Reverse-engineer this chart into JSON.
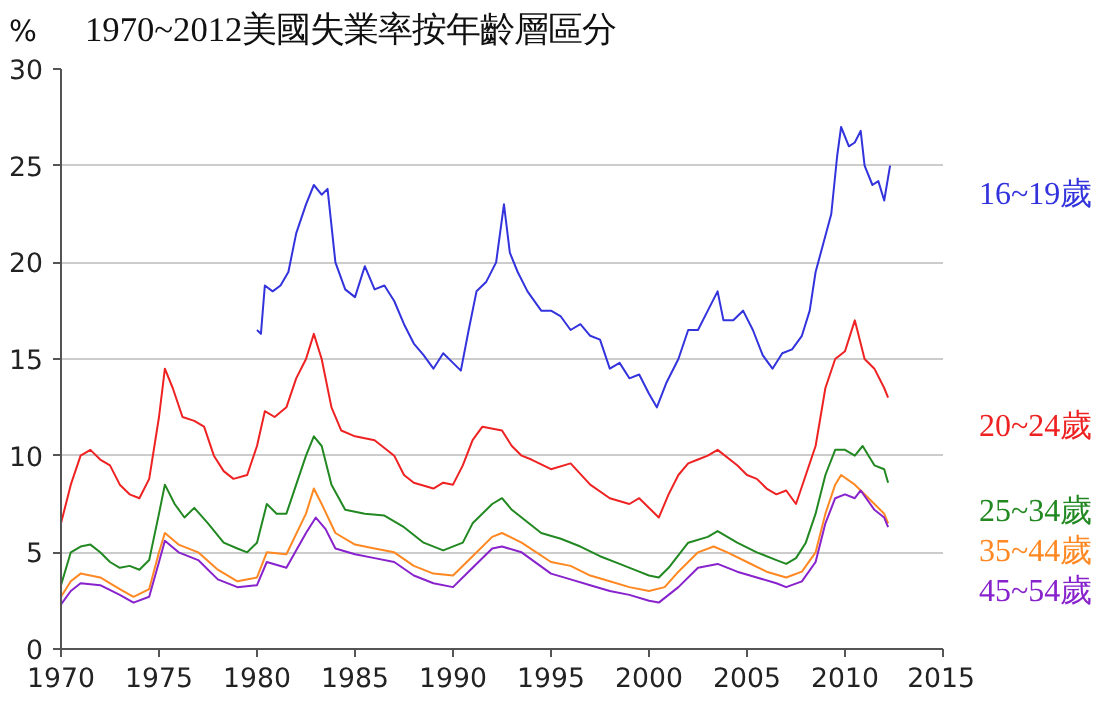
{
  "chart_data": {
    "type": "line",
    "title": "1970~2012美國失業率按年齡層區分",
    "ylabel": "%",
    "xlim": [
      1970,
      2015
    ],
    "xticks": [
      1970,
      1975,
      1980,
      1985,
      1990,
      1995,
      2000,
      2005,
      2010,
      2015
    ],
    "ylim": [
      0,
      30
    ],
    "yticks": [
      0,
      5,
      10,
      15,
      20,
      25,
      30
    ],
    "grid": "y",
    "marker": "none",
    "line_style": "solid",
    "series": [
      {
        "name": "16~19歲",
        "color": "#3333dd",
        "x": [
          1980.0,
          1980.2,
          1980.4,
          1980.8,
          1981.2,
          1981.6,
          1982.0,
          1982.5,
          1982.9,
          1983.3,
          1983.6,
          1984.0,
          1984.5,
          1985.0,
          1985.5,
          1986.0,
          1986.5,
          1987.0,
          1987.5,
          1988.0,
          1988.5,
          1989.0,
          1989.5,
          1990.0,
          1990.4,
          1990.8,
          1991.2,
          1991.7,
          1992.2,
          1992.6,
          1992.9,
          1993.3,
          1993.8,
          1994.5,
          1995.0,
          1995.5,
          1996.0,
          1996.5,
          1997.0,
          1997.5,
          1998.0,
          1998.5,
          1999.0,
          1999.5,
          2000.0,
          2000.4,
          2000.9,
          2001.5,
          2002.0,
          2002.5,
          2003.0,
          2003.5,
          2003.8,
          2004.3,
          2004.8,
          2005.3,
          2005.8,
          2006.3,
          2006.8,
          2007.3,
          2007.8,
          2008.2,
          2008.5,
          2008.9,
          2009.3,
          2009.6,
          2009.8,
          2010.2,
          2010.5,
          2010.8,
          2011.0,
          2011.4,
          2011.7,
          2012.0,
          2012.3
        ],
        "values": [
          16.5,
          16.3,
          18.8,
          18.5,
          18.8,
          19.5,
          21.5,
          23.0,
          24.0,
          23.5,
          23.8,
          20.0,
          18.6,
          18.2,
          19.8,
          18.6,
          18.8,
          18.0,
          16.8,
          15.8,
          15.2,
          14.5,
          15.3,
          14.8,
          14.4,
          16.5,
          18.5,
          19.0,
          20.0,
          23.0,
          20.5,
          19.5,
          18.5,
          17.5,
          17.5,
          17.2,
          16.5,
          16.8,
          16.2,
          16.0,
          14.5,
          14.8,
          14.0,
          14.2,
          13.2,
          12.5,
          13.8,
          15.0,
          16.5,
          16.5,
          17.5,
          18.5,
          17.0,
          17.0,
          17.5,
          16.5,
          15.2,
          14.5,
          15.3,
          15.5,
          16.2,
          17.5,
          19.5,
          21.0,
          22.5,
          25.5,
          27.0,
          26.0,
          26.2,
          26.8,
          25.0,
          24.0,
          24.2,
          23.2,
          25.0
        ]
      },
      {
        "name": "20~24歲",
        "color": "#ee2222",
        "x": [
          1970.0,
          1970.5,
          1971.0,
          1971.5,
          1972.0,
          1972.5,
          1973.0,
          1973.5,
          1974.0,
          1974.5,
          1975.0,
          1975.3,
          1975.7,
          1976.2,
          1976.8,
          1977.3,
          1977.8,
          1978.3,
          1978.8,
          1979.5,
          1980.0,
          1980.4,
          1980.9,
          1981.5,
          1982.0,
          1982.5,
          1982.9,
          1983.3,
          1983.8,
          1984.3,
          1985.0,
          1986.0,
          1987.0,
          1987.5,
          1988.0,
          1989.0,
          1989.5,
          1990.0,
          1990.5,
          1991.0,
          1991.5,
          1992.5,
          1993.0,
          1993.5,
          1994.0,
          1995.0,
          1996.0,
          1997.0,
          1998.0,
          1999.0,
          1999.5,
          2000.5,
          2001.0,
          2001.5,
          2002.0,
          2002.5,
          2003.0,
          2003.5,
          2004.5,
          2005.0,
          2005.5,
          2006.0,
          2006.5,
          2007.0,
          2007.5,
          2008.0,
          2008.5,
          2009.0,
          2009.5,
          2010.0,
          2010.5,
          2011.0,
          2011.5,
          2012.0,
          2012.2
        ],
        "values": [
          6.5,
          8.5,
          10.0,
          10.3,
          9.8,
          9.5,
          8.5,
          8.0,
          7.8,
          8.8,
          12.0,
          14.5,
          13.5,
          12.0,
          11.8,
          11.5,
          10.0,
          9.2,
          8.8,
          9.0,
          10.5,
          12.3,
          12.0,
          12.5,
          14.0,
          15.0,
          16.3,
          15.0,
          12.5,
          11.3,
          11.0,
          10.8,
          10.0,
          9.0,
          8.6,
          8.3,
          8.6,
          8.5,
          9.5,
          10.8,
          11.5,
          11.3,
          10.5,
          10.0,
          9.8,
          9.3,
          9.6,
          8.5,
          7.8,
          7.5,
          7.8,
          6.8,
          8.0,
          9.0,
          9.6,
          9.8,
          10.0,
          10.3,
          9.5,
          9.0,
          8.8,
          8.3,
          8.0,
          8.2,
          7.5,
          9.0,
          10.5,
          13.5,
          15.0,
          15.4,
          17.0,
          15.0,
          14.5,
          13.5,
          13.0
        ]
      },
      {
        "name": "25~34歲",
        "color": "#228822",
        "x": [
          1970.0,
          1970.5,
          1971.0,
          1971.5,
          1972.0,
          1972.5,
          1973.0,
          1973.5,
          1974.0,
          1974.5,
          1975.0,
          1975.3,
          1975.8,
          1976.3,
          1976.8,
          1977.5,
          1978.3,
          1979.0,
          1979.5,
          1980.0,
          1980.5,
          1981.0,
          1981.5,
          1982.0,
          1982.5,
          1982.9,
          1983.3,
          1983.8,
          1984.5,
          1985.5,
          1986.5,
          1987.5,
          1988.5,
          1989.5,
          1990.5,
          1991.0,
          1992.0,
          1992.5,
          1993.0,
          1993.5,
          1994.5,
          1995.5,
          1996.5,
          1997.5,
          1998.5,
          1999.5,
          2000.0,
          2000.5,
          2001.0,
          2002.0,
          2003.0,
          2003.5,
          2004.5,
          2005.5,
          2006.5,
          2007.0,
          2007.5,
          2008.0,
          2008.5,
          2009.0,
          2009.5,
          2010.0,
          2010.5,
          2010.9,
          2011.5,
          2012.0,
          2012.2
        ],
        "values": [
          3.3,
          5.0,
          5.3,
          5.4,
          5.0,
          4.5,
          4.2,
          4.3,
          4.1,
          4.6,
          7.0,
          8.5,
          7.5,
          6.8,
          7.3,
          6.5,
          5.5,
          5.2,
          5.0,
          5.5,
          7.5,
          7.0,
          7.0,
          8.5,
          10.0,
          11.0,
          10.5,
          8.5,
          7.2,
          7.0,
          6.9,
          6.3,
          5.5,
          5.1,
          5.5,
          6.5,
          7.5,
          7.8,
          7.2,
          6.8,
          6.0,
          5.7,
          5.3,
          4.8,
          4.4,
          4.0,
          3.8,
          3.7,
          4.2,
          5.5,
          5.8,
          6.1,
          5.5,
          5.0,
          4.6,
          4.4,
          4.7,
          5.5,
          7.0,
          9.0,
          10.3,
          10.3,
          10.0,
          10.5,
          9.5,
          9.3,
          8.6
        ]
      },
      {
        "name": "35~44歲",
        "color": "#ff8822",
        "x": [
          1970.0,
          1970.5,
          1971.0,
          1972.0,
          1973.0,
          1973.7,
          1974.5,
          1975.0,
          1975.3,
          1976.0,
          1977.0,
          1978.0,
          1979.0,
          1980.0,
          1980.5,
          1981.5,
          1982.5,
          1982.9,
          1983.3,
          1984.0,
          1985.0,
          1986.0,
          1987.0,
          1988.0,
          1989.0,
          1990.0,
          1991.0,
          1992.0,
          1992.5,
          1993.5,
          1995.0,
          1996.0,
          1997.0,
          1998.0,
          1999.0,
          2000.0,
          2000.8,
          2001.5,
          2002.5,
          2003.3,
          2004.0,
          2005.0,
          2006.0,
          2007.0,
          2007.8,
          2008.5,
          2009.0,
          2009.5,
          2009.8,
          2010.5,
          2011.0,
          2011.5,
          2012.0,
          2012.2
        ],
        "values": [
          2.7,
          3.5,
          3.9,
          3.7,
          3.1,
          2.7,
          3.1,
          5.0,
          6.0,
          5.4,
          5.0,
          4.1,
          3.5,
          3.7,
          5.0,
          4.9,
          7.0,
          8.3,
          7.5,
          6.0,
          5.4,
          5.2,
          5.0,
          4.3,
          3.9,
          3.8,
          4.8,
          5.8,
          6.0,
          5.5,
          4.5,
          4.3,
          3.8,
          3.5,
          3.2,
          3.0,
          3.2,
          4.0,
          5.0,
          5.3,
          5.0,
          4.5,
          4.0,
          3.7,
          4.0,
          5.0,
          7.0,
          8.5,
          9.0,
          8.5,
          8.0,
          7.5,
          7.0,
          6.5
        ]
      },
      {
        "name": "45~54歲",
        "color": "#8822cc",
        "x": [
          1970.0,
          1970.5,
          1971.0,
          1972.0,
          1973.0,
          1973.7,
          1974.5,
          1975.0,
          1975.3,
          1976.0,
          1977.0,
          1978.0,
          1979.0,
          1980.0,
          1980.5,
          1981.5,
          1982.5,
          1983.0,
          1983.5,
          1984.0,
          1985.0,
          1986.0,
          1987.0,
          1988.0,
          1989.0,
          1990.0,
          1991.0,
          1992.0,
          1992.5,
          1993.5,
          1995.0,
          1996.0,
          1997.0,
          1998.0,
          1999.0,
          2000.0,
          2000.5,
          2001.5,
          2002.5,
          2003.5,
          2004.5,
          2005.5,
          2006.5,
          2007.0,
          2007.8,
          2008.5,
          2009.0,
          2009.5,
          2010.0,
          2010.5,
          2010.8,
          2011.5,
          2012.0,
          2012.2
        ],
        "values": [
          2.3,
          3.0,
          3.4,
          3.3,
          2.8,
          2.4,
          2.7,
          4.5,
          5.6,
          5.0,
          4.6,
          3.6,
          3.2,
          3.3,
          4.5,
          4.2,
          6.0,
          6.8,
          6.2,
          5.2,
          4.9,
          4.7,
          4.5,
          3.8,
          3.4,
          3.2,
          4.2,
          5.2,
          5.3,
          5.0,
          3.9,
          3.6,
          3.3,
          3.0,
          2.8,
          2.5,
          2.4,
          3.2,
          4.2,
          4.4,
          4.0,
          3.7,
          3.4,
          3.2,
          3.5,
          4.5,
          6.5,
          7.8,
          8.0,
          7.8,
          8.2,
          7.2,
          6.8,
          6.3
        ]
      }
    ]
  }
}
